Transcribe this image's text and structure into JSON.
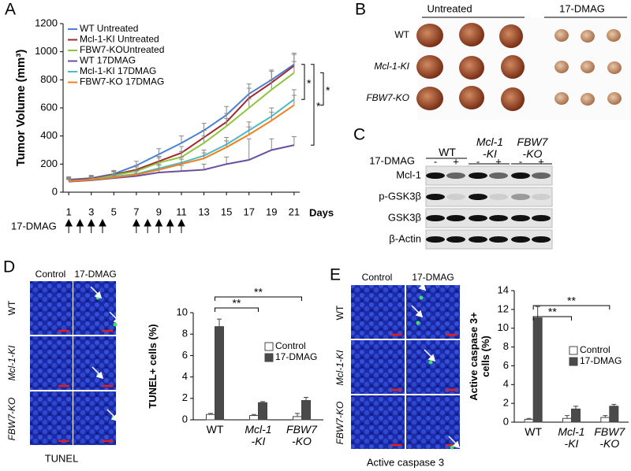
{
  "chart_data": [
    {
      "type": "line",
      "ylabel": "Tumor Volume (mm³)",
      "xlabel": "Days",
      "x": [
        1,
        3,
        5,
        7,
        9,
        11,
        13,
        15,
        17,
        19,
        21
      ],
      "xlim": [
        0.5,
        21.5
      ],
      "xticks": [
        1,
        3,
        5,
        7,
        9,
        11,
        13,
        15,
        17,
        19,
        21
      ],
      "ylim": [
        0,
        1200
      ],
      "yticks": [
        0,
        200,
        400,
        600,
        800,
        1000,
        1200
      ],
      "series": [
        {
          "name": "WT Untreated",
          "color": "#4a7fd4",
          "values": [
            90,
            100,
            130,
            190,
            270,
            350,
            440,
            550,
            700,
            800,
            910
          ],
          "errors": [
            20,
            20,
            25,
            30,
            40,
            50,
            50,
            60,
            70,
            70,
            80
          ]
        },
        {
          "name": "Mcl-1-KI Untreated",
          "color": "#a3282b",
          "values": [
            85,
            95,
            125,
            160,
            220,
            280,
            390,
            500,
            670,
            780,
            900
          ],
          "errors": [
            20,
            20,
            25,
            30,
            35,
            45,
            50,
            60,
            70,
            80,
            80
          ]
        },
        {
          "name": "FBW7-KOUntreated",
          "color": "#8cc63f",
          "values": [
            80,
            90,
            120,
            150,
            210,
            250,
            350,
            470,
            600,
            730,
            850
          ],
          "errors": [
            20,
            20,
            25,
            30,
            35,
            40,
            50,
            55,
            65,
            70,
            80
          ]
        },
        {
          "name": "WT 17DMAG",
          "color": "#6a4fa0",
          "values": [
            75,
            85,
            100,
            115,
            140,
            150,
            160,
            200,
            230,
            300,
            335
          ],
          "errors": [
            15,
            15,
            20,
            20,
            30,
            40,
            40,
            50,
            150,
            80,
            60
          ]
        },
        {
          "name": "Mcl-1-KI 17DMAG",
          "color": "#4bbcc4",
          "values": [
            80,
            90,
            110,
            130,
            170,
            210,
            260,
            340,
            440,
            540,
            660
          ],
          "errors": [
            15,
            15,
            20,
            25,
            30,
            40,
            40,
            50,
            60,
            60,
            70
          ]
        },
        {
          "name": "FBW7-KO 17DMAG",
          "color": "#f07f20",
          "values": [
            78,
            88,
            105,
            125,
            160,
            200,
            240,
            320,
            410,
            510,
            620
          ],
          "errors": [
            15,
            15,
            20,
            25,
            30,
            35,
            40,
            45,
            55,
            60,
            70
          ]
        }
      ],
      "treatment_label": "17-DMAG",
      "treatment_days": [
        1,
        2,
        3,
        4,
        7,
        8,
        9,
        10,
        11
      ],
      "significance": [
        "*",
        "*",
        "*"
      ]
    },
    {
      "type": "bar",
      "ylabel": "TUNEL+ cells (%)",
      "categories": [
        "WT",
        "Mcl-1\n-KI",
        "FBW7\n-KO"
      ],
      "ylim": [
        0,
        10
      ],
      "yticks": [
        0,
        2,
        4,
        6,
        8,
        10
      ],
      "series": [
        {
          "name": "Control",
          "color": "#ffffff",
          "values": [
            0.5,
            0.4,
            0.3
          ],
          "errors": [
            0.1,
            0.1,
            0.3
          ]
        },
        {
          "name": "17-DMAG",
          "color": "#4a4a4a",
          "values": [
            8.7,
            1.6,
            1.8
          ],
          "errors": [
            0.7,
            0.1,
            0.3
          ]
        }
      ],
      "significance": [
        "**",
        "**"
      ]
    },
    {
      "type": "bar",
      "ylabel": "Active caspase 3+\ncells (%)",
      "categories": [
        "WT",
        "Mcl-1\n-KI",
        "FBW7\n-KO"
      ],
      "ylim": [
        0,
        14
      ],
      "yticks": [
        0,
        2,
        4,
        6,
        8,
        10,
        12,
        14
      ],
      "series": [
        {
          "name": "Control",
          "color": "#ffffff",
          "values": [
            0.3,
            0.4,
            0.5
          ],
          "errors": [
            0.1,
            0.3,
            0.2
          ]
        },
        {
          "name": "17-DMAG",
          "color": "#4a4a4a",
          "values": [
            11.1,
            1.4,
            1.7
          ],
          "errors": [
            1.2,
            0.3,
            0.2
          ]
        }
      ],
      "significance": [
        "**",
        "**"
      ]
    }
  ],
  "figure": {
    "panel_labels": [
      "A",
      "B",
      "C",
      "D",
      "E"
    ],
    "b": {
      "columns": [
        "Untreated",
        "17-DMAG"
      ],
      "rows": [
        "WT",
        "Mcl-1-KI",
        "FBW7-KO"
      ]
    },
    "c": {
      "groups": [
        "WT",
        "Mcl-1\n-KI",
        "FBW7\n-KO"
      ],
      "treatment_label": "17-DMAG",
      "signs": [
        "-",
        "+",
        "-",
        "+",
        "-",
        "+"
      ],
      "rows": [
        "Mcl-1",
        "p-GSK3β",
        "GSK3β",
        "β-Actin"
      ]
    },
    "d": {
      "columns": [
        "Control",
        "17-DMAG"
      ],
      "rows": [
        "WT",
        "Mcl-1-KI",
        "FBW7-KO"
      ],
      "caption": "TUNEL"
    },
    "e": {
      "columns": [
        "Control",
        "17-DMAG"
      ],
      "rows": [
        "WT",
        "Mcl-1-KI",
        "FBW7-KO"
      ],
      "caption": "Active caspase 3"
    }
  }
}
